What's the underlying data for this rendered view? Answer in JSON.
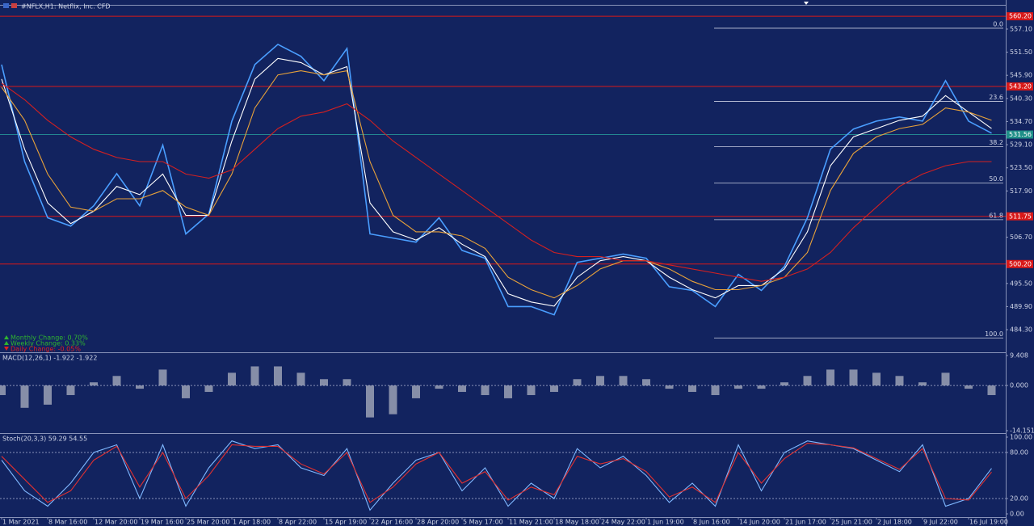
{
  "header": {
    "title": "#NFLX,H1: Netflix, Inc. CFD"
  },
  "info": [
    "Monthly Change: 0.70%",
    "Weekly Change: 0.33%",
    "Daily Change: -0.05%"
  ],
  "chart_data": [
    {
      "type": "line",
      "ylim": [
        478.83,
        562.77
      ],
      "yticks": [
        {
          "value": 557.1,
          "label": "557.10"
        },
        {
          "value": 551.5,
          "label": "551.50"
        },
        {
          "value": 545.9,
          "label": "545.90"
        },
        {
          "value": 540.3,
          "label": "540.30"
        },
        {
          "value": 534.7,
          "label": "534.70"
        },
        {
          "value": 529.1,
          "label": "529.10"
        },
        {
          "value": 523.5,
          "label": "523.50"
        },
        {
          "value": 517.9,
          "label": "517.90"
        },
        {
          "value": 506.7,
          "label": "506.70"
        },
        {
          "value": 495.5,
          "label": "495.50"
        },
        {
          "value": 489.9,
          "label": "489.90"
        },
        {
          "value": 484.3,
          "label": "484.30"
        }
      ],
      "levels": [
        {
          "value": 560.2,
          "label": "560.20"
        },
        {
          "value": 543.2,
          "label": "543.20"
        },
        {
          "value": 511.75,
          "label": "511.75"
        },
        {
          "value": 500.2,
          "label": "500.20"
        }
      ],
      "current": 531.56,
      "fibo": {
        "high": 557.3,
        "low": 482.3,
        "levels": [
          {
            "value": 0,
            "label": "0.0"
          },
          23.6,
          38.2,
          {
            "value": 50,
            "label": "50.0"
          },
          61.8,
          {
            "value": 100,
            "label": "100.0"
          }
        ]
      },
      "series": [
        {
          "color": "#4a9eff",
          "values": [
            548.5,
            525.0,
            511.4,
            509.4,
            514.3,
            522.1,
            514.3,
            529.0,
            507.5,
            512.3,
            534.8,
            548.5,
            553.4,
            550.5,
            544.6,
            552.4,
            507.5,
            506.5,
            505.5,
            511.4,
            503.5,
            501.6,
            489.9,
            489.9,
            487.9,
            500.6,
            501.6,
            502.6,
            501.6,
            494.7,
            493.8,
            489.9,
            497.7,
            493.8,
            499.6,
            511.4,
            528.0,
            532.9,
            534.8,
            535.8,
            534.8,
            544.6,
            534.8,
            531.9
          ]
        },
        {
          "color": "#ffffff",
          "values": [
            545,
            528,
            515,
            510,
            513,
            519,
            517,
            522,
            512,
            512,
            530,
            545,
            550,
            549,
            546,
            548,
            515,
            508,
            506,
            509,
            505,
            502,
            493,
            491,
            490,
            497,
            501,
            502,
            501,
            497,
            494,
            492,
            495,
            495,
            499,
            508,
            524,
            531,
            533,
            535,
            536,
            541,
            537,
            533
          ]
        },
        {
          "color": "#e8a23a",
          "values": [
            543,
            535,
            522,
            514,
            513,
            516,
            516,
            518,
            514,
            512,
            522,
            538,
            546,
            547,
            546,
            547,
            525,
            512,
            508,
            508,
            507,
            504,
            497,
            494,
            492,
            495,
            499,
            501,
            501,
            499,
            496,
            494,
            494,
            495,
            497,
            503,
            518,
            527,
            531,
            533,
            534,
            538,
            537,
            535
          ]
        },
        {
          "color": "#d42020",
          "values": [
            544,
            540,
            535,
            531,
            528,
            526,
            525,
            525,
            522,
            521,
            523,
            528,
            533,
            536,
            537,
            539,
            535,
            530,
            526,
            522,
            518,
            514,
            510,
            506,
            503,
            502,
            502,
            501,
            501,
            500,
            499,
            498,
            497,
            496,
            497,
            499,
            503,
            509,
            514,
            519,
            522,
            524,
            525,
            525
          ]
        }
      ]
    },
    {
      "type": "bar",
      "title": "MACD(12,26,1) -1.922 -1.922",
      "ylim": [
        -14.91,
        10.17
      ],
      "yticks": [
        9.408,
        {
          "value": 0,
          "label": "0.000"
        },
        -14.151
      ],
      "color": "#b8bcc8",
      "values": [
        -3,
        -7,
        -6,
        -3,
        1,
        3,
        -1,
        5,
        -4,
        -2,
        4,
        6,
        6,
        4,
        2,
        2,
        -10,
        -9,
        -4,
        -1,
        -2,
        -3,
        -4,
        -3,
        -2,
        2,
        3,
        3,
        2,
        -1,
        -2,
        -3,
        -1,
        -1,
        1,
        3,
        5,
        5,
        4,
        3,
        1,
        4,
        -1,
        -3
      ]
    },
    {
      "type": "line",
      "title": "Stoch(20,3,3) 59.29 54.55",
      "ylim": [
        -4.2,
        104.2
      ],
      "yticks": [
        {
          "value": 100,
          "label": "100.00"
        },
        {
          "value": 80,
          "label": "80.00"
        },
        {
          "value": 20,
          "label": "20.00"
        },
        {
          "value": 0,
          "label": "0.00"
        }
      ],
      "levels": [
        80,
        20
      ],
      "categories": [
        "1 Mar 2021",
        null,
        "8 Mar 16:00",
        null,
        "12 Mar 20:00",
        null,
        "19 Mar 16:00",
        null,
        "25 Mar 20:00",
        null,
        "1 Apr 18:00",
        null,
        "8 Apr 22:00",
        null,
        "15 Apr 19:00",
        null,
        "22 Apr 16:00",
        null,
        "28 Apr 20:00",
        null,
        "5 May 17:00",
        null,
        "11 May 21:00",
        null,
        "18 May 18:00",
        null,
        "24 May 22:00",
        null,
        "1 Jun 19:00",
        null,
        "8 Jun 16:00",
        null,
        "14 Jun 20:00",
        null,
        "21 Jun 17:00",
        null,
        "25 Jun 21:00",
        null,
        "2 Jul 18:00",
        null,
        "9 Jul 22:00",
        null,
        "16 Jul 19:00",
        null
      ],
      "series": [
        {
          "color": "#7fb8ff",
          "values": [
            70,
            30,
            10,
            40,
            80,
            90,
            20,
            90,
            10,
            60,
            95,
            85,
            90,
            60,
            50,
            85,
            5,
            40,
            70,
            80,
            30,
            60,
            10,
            40,
            20,
            85,
            60,
            75,
            50,
            15,
            40,
            10,
            90,
            30,
            80,
            95,
            90,
            85,
            70,
            55,
            90,
            10,
            20,
            59.29
          ]
        },
        {
          "color": "#e03030",
          "values": [
            75,
            45,
            15,
            30,
            70,
            88,
            35,
            80,
            20,
            50,
            90,
            88,
            88,
            65,
            52,
            80,
            15,
            35,
            65,
            80,
            40,
            55,
            18,
            35,
            25,
            75,
            65,
            72,
            55,
            22,
            35,
            15,
            80,
            40,
            72,
            92,
            90,
            86,
            72,
            58,
            85,
            20,
            18,
            54.55
          ]
        }
      ]
    }
  ]
}
